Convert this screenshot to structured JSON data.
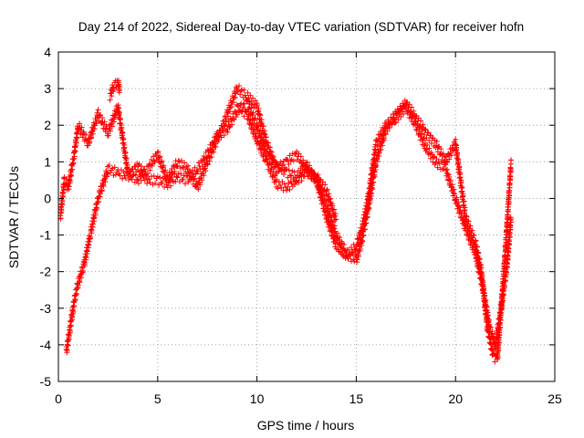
{
  "chart_data": {
    "type": "scatter",
    "title": "Day 214 of 2022, Sidereal Day-to-day VTEC variation (SDTVAR) for receiver hofn",
    "xlabel": "GPS time / hours",
    "ylabel": "SDTVAR / TECUs",
    "xlim": [
      0,
      25
    ],
    "ylim": [
      -5,
      4
    ],
    "xticks": [
      "0",
      "5",
      "10",
      "15",
      "20",
      "25"
    ],
    "yticks": [
      "-5",
      "-4",
      "-3",
      "-2",
      "-1",
      "0",
      "1",
      "2",
      "3",
      "4"
    ],
    "grid": true,
    "marker": "plus",
    "series": [
      {
        "name": "SDTVAR",
        "color": "#ff0000",
        "branches": [
          {
            "x": [
              0.1,
              0.3,
              0.5,
              0.8,
              1.0,
              1.5,
              2.0,
              2.5,
              3.0,
              3.5,
              4.0,
              4.5,
              5.0,
              5.5,
              6.0,
              6.5,
              7.0,
              7.5,
              8.0,
              8.5,
              9.0,
              9.5,
              10.0,
              10.5,
              11.0,
              11.5,
              12.0,
              12.5,
              13.0,
              13.5,
              14.0,
              14.5,
              15.0,
              15.3,
              15.6,
              16.0,
              16.5,
              17.0,
              17.5,
              18.0,
              18.5,
              19.0,
              19.5,
              20.0,
              20.5,
              21.0,
              21.3,
              21.6,
              21.9,
              22.1,
              22.3,
              22.5,
              22.8
            ],
            "y": [
              -0.5,
              0.5,
              0.3,
              1.2,
              2.0,
              1.5,
              2.3,
              1.8,
              2.5,
              0.7,
              0.5,
              0.8,
              1.2,
              0.5,
              1.0,
              0.8,
              0.3,
              1.0,
              1.6,
              2.3,
              3.0,
              2.8,
              2.5,
              1.5,
              0.8,
              1.0,
              1.2,
              0.8,
              0.5,
              -0.2,
              -1.0,
              -1.5,
              -1.7,
              -1.1,
              -0.3,
              1.0,
              1.9,
              2.3,
              2.6,
              2.2,
              1.8,
              1.5,
              1.0,
              1.5,
              -0.5,
              -1.2,
              -2.0,
              -3.5,
              -4.3,
              -4.4,
              -3.0,
              -1.5,
              1.0
            ]
          },
          {
            "x": [
              0.4,
              0.6,
              0.8,
              1.0,
              1.3,
              1.6,
              2.0,
              2.5,
              3.0,
              3.5,
              4.0,
              4.5,
              5.0,
              5.5,
              6.0,
              6.5,
              7.0,
              7.5,
              8.0,
              8.5,
              9.0,
              9.5,
              10.0,
              10.5,
              11.0,
              11.5,
              12.0,
              12.5,
              13.0,
              13.5,
              14.0,
              14.5,
              15.0,
              15.3,
              15.6,
              16.0,
              16.5,
              17.0,
              17.5,
              18.0,
              18.5,
              19.0,
              19.5,
              20.0,
              20.5,
              21.0,
              21.4,
              21.7,
              22.0,
              22.3,
              22.6,
              22.8
            ],
            "y": [
              -4.2,
              -3.5,
              -2.8,
              -2.3,
              -1.8,
              -1.0,
              0.0,
              0.8,
              0.7,
              0.6,
              0.9,
              0.5,
              0.5,
              0.4,
              0.6,
              0.5,
              0.8,
              1.2,
              1.7,
              1.9,
              2.4,
              2.6,
              2.0,
              1.2,
              0.9,
              0.7,
              0.6,
              0.9,
              0.5,
              -0.5,
              -1.3,
              -1.6,
              -1.3,
              -0.8,
              0.0,
              1.5,
              2.0,
              2.2,
              2.5,
              2.0,
              1.4,
              1.0,
              0.8,
              0.0,
              -0.8,
              -1.5,
              -2.5,
              -3.5,
              -4.0,
              -3.0,
              -1.8,
              -0.5
            ]
          },
          {
            "x": [
              9.0,
              9.5,
              10.0,
              10.5,
              11.0,
              11.5,
              12.0,
              12.5,
              13.0,
              13.5,
              14.0
            ],
            "y": [
              2.5,
              2.3,
              1.6,
              1.0,
              0.4,
              0.3,
              0.5,
              0.7,
              0.6,
              0.2,
              -0.6
            ]
          },
          {
            "x": [
              2.6,
              2.8,
              3.0,
              3.1
            ],
            "y": [
              2.8,
              3.1,
              3.2,
              2.9
            ]
          }
        ]
      }
    ]
  }
}
